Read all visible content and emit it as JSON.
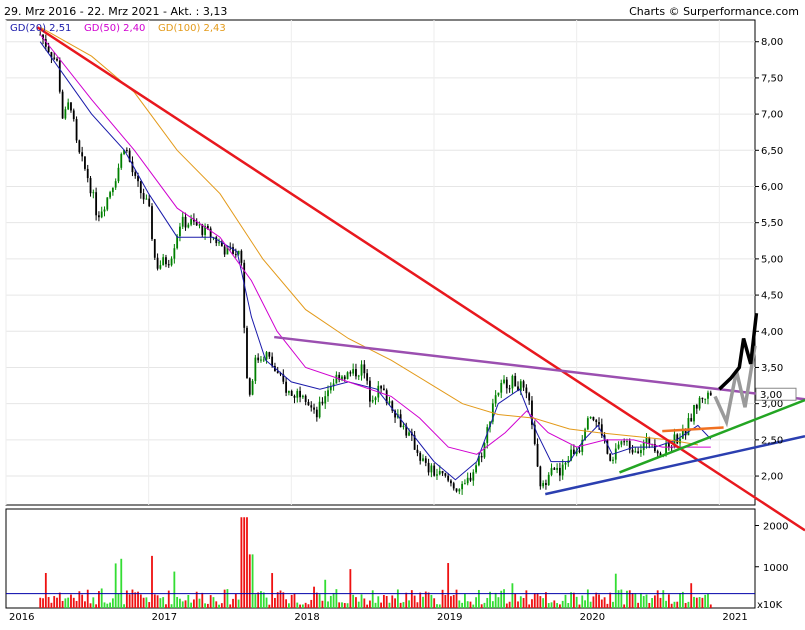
{
  "header": {
    "date_range": "29. Mrz 2016 - 22. Mrz 2021 - Akt. : 3,13",
    "credit": "Charts © Surperformance.com"
  },
  "colors": {
    "up_candle": "#008000",
    "down_candle": "#000000",
    "gd20": "#1a1aaa",
    "gd50": "#d000d0",
    "gd100": "#e39a1a",
    "red_trend": "#e8181e",
    "purple_trend": "#9b4fb0",
    "blue_trend": "#2b3fb0",
    "green_trend": "#23a523",
    "orange_line": "#f07020",
    "vol_up": "#33dd33",
    "vol_down": "#ee1111",
    "vol_avg": "#0000aa"
  },
  "chart_data": {
    "type": "candlestick",
    "legend": [
      {
        "label": "GD(20)",
        "value": "2,51",
        "color": "#1a1aaa"
      },
      {
        "label": "GD(50)",
        "value": "2,40",
        "color": "#d000d0"
      },
      {
        "label": "GD(100)",
        "value": "2,43",
        "color": "#e39a1a"
      }
    ],
    "price_ticks": [
      "8,00",
      "7,50",
      "7,00",
      "6,50",
      "6,00",
      "5,50",
      "5,00",
      "4,50",
      "4,00",
      "3,50",
      "3,00",
      "2,50",
      "2,00"
    ],
    "volume_ticks": [
      "2000",
      "1000"
    ],
    "volume_unit": "x10K",
    "x_ticks": [
      "2016",
      "2017",
      "2018",
      "2019",
      "2020",
      "2021"
    ],
    "ylim": [
      1.6,
      8.3
    ],
    "last_price": 3.13,
    "close_path": [
      [
        2016.24,
        8.1
      ],
      [
        2016.3,
        7.9
      ],
      [
        2016.36,
        7.7
      ],
      [
        2016.4,
        6.9
      ],
      [
        2016.45,
        7.2
      ],
      [
        2016.5,
        6.5
      ],
      [
        2016.58,
        6.1
      ],
      [
        2016.64,
        5.6
      ],
      [
        2016.7,
        5.8
      ],
      [
        2016.78,
        6.2
      ],
      [
        2016.83,
        6.6
      ],
      [
        2016.9,
        6.1
      ],
      [
        2017.0,
        5.7
      ],
      [
        2017.05,
        4.9
      ],
      [
        2017.15,
        5.0
      ],
      [
        2017.22,
        5.5
      ],
      [
        2017.3,
        5.5
      ],
      [
        2017.38,
        5.4
      ],
      [
        2017.45,
        5.3
      ],
      [
        2017.55,
        5.1
      ],
      [
        2017.62,
        5.1
      ],
      [
        2017.66,
        5.0
      ],
      [
        2017.67,
        4.0
      ],
      [
        2017.7,
        3.1
      ],
      [
        2017.75,
        3.6
      ],
      [
        2017.82,
        3.7
      ],
      [
        2017.9,
        3.4
      ],
      [
        2018.0,
        3.1
      ],
      [
        2018.08,
        3.2
      ],
      [
        2018.17,
        2.8
      ],
      [
        2018.25,
        3.2
      ],
      [
        2018.33,
        3.4
      ],
      [
        2018.42,
        3.4
      ],
      [
        2018.5,
        3.5
      ],
      [
        2018.55,
        3.1
      ],
      [
        2018.62,
        3.2
      ],
      [
        2018.7,
        3.0
      ],
      [
        2018.78,
        2.7
      ],
      [
        2018.87,
        2.4
      ],
      [
        2018.95,
        2.1
      ],
      [
        2019.05,
        2.0
      ],
      [
        2019.12,
        1.9
      ],
      [
        2019.2,
        1.8
      ],
      [
        2019.28,
        2.1
      ],
      [
        2019.35,
        2.4
      ],
      [
        2019.42,
        3.1
      ],
      [
        2019.5,
        3.3
      ],
      [
        2019.57,
        3.3
      ],
      [
        2019.62,
        3.2
      ],
      [
        2019.68,
        2.9
      ],
      [
        2019.72,
        2.1
      ],
      [
        2019.76,
        1.8
      ],
      [
        2019.82,
        2.2
      ],
      [
        2019.88,
        2.0
      ],
      [
        2019.95,
        2.3
      ],
      [
        2020.02,
        2.4
      ],
      [
        2020.08,
        2.9
      ],
      [
        2020.12,
        2.8
      ],
      [
        2020.18,
        2.6
      ],
      [
        2020.24,
        2.1
      ],
      [
        2020.3,
        2.5
      ],
      [
        2020.38,
        2.4
      ],
      [
        2020.45,
        2.4
      ],
      [
        2020.52,
        2.5
      ],
      [
        2020.6,
        2.3
      ],
      [
        2020.68,
        2.5
      ],
      [
        2020.76,
        2.6
      ],
      [
        2020.82,
        2.9
      ],
      [
        2020.88,
        3.1
      ],
      [
        2020.94,
        3.13
      ]
    ],
    "moving_averages": {
      "GD20": [
        [
          2016.24,
          8.0
        ],
        [
          2016.6,
          7.0
        ],
        [
          2016.83,
          6.5
        ],
        [
          2017.0,
          5.9
        ],
        [
          2017.2,
          5.3
        ],
        [
          2017.45,
          5.3
        ],
        [
          2017.62,
          5.1
        ],
        [
          2017.72,
          4.2
        ],
        [
          2017.82,
          3.6
        ],
        [
          2018.0,
          3.3
        ],
        [
          2018.2,
          3.2
        ],
        [
          2018.4,
          3.3
        ],
        [
          2018.6,
          3.2
        ],
        [
          2018.8,
          2.7
        ],
        [
          2019.0,
          2.2
        ],
        [
          2019.15,
          1.95
        ],
        [
          2019.3,
          2.2
        ],
        [
          2019.45,
          3.0
        ],
        [
          2019.6,
          3.2
        ],
        [
          2019.72,
          2.6
        ],
        [
          2019.82,
          2.2
        ],
        [
          2019.95,
          2.2
        ],
        [
          2020.05,
          2.5
        ],
        [
          2020.15,
          2.7
        ],
        [
          2020.25,
          2.3
        ],
        [
          2020.4,
          2.4
        ],
        [
          2020.55,
          2.4
        ],
        [
          2020.7,
          2.5
        ],
        [
          2020.85,
          2.7
        ],
        [
          2020.94,
          2.51
        ]
      ],
      "GD50": [
        [
          2016.24,
          8.1
        ],
        [
          2016.6,
          7.2
        ],
        [
          2016.9,
          6.5
        ],
        [
          2017.2,
          5.7
        ],
        [
          2017.5,
          5.3
        ],
        [
          2017.72,
          4.7
        ],
        [
          2017.9,
          4.0
        ],
        [
          2018.1,
          3.5
        ],
        [
          2018.4,
          3.3
        ],
        [
          2018.7,
          3.1
        ],
        [
          2018.9,
          2.8
        ],
        [
          2019.1,
          2.4
        ],
        [
          2019.3,
          2.3
        ],
        [
          2019.5,
          2.6
        ],
        [
          2019.65,
          2.9
        ],
        [
          2019.8,
          2.6
        ],
        [
          2020.0,
          2.4
        ],
        [
          2020.2,
          2.5
        ],
        [
          2020.4,
          2.5
        ],
        [
          2020.6,
          2.4
        ],
        [
          2020.8,
          2.4
        ],
        [
          2020.94,
          2.4
        ]
      ],
      "GD100": [
        [
          2016.24,
          8.2
        ],
        [
          2016.6,
          7.8
        ],
        [
          2016.9,
          7.3
        ],
        [
          2017.2,
          6.5
        ],
        [
          2017.5,
          5.9
        ],
        [
          2017.8,
          5.0
        ],
        [
          2018.1,
          4.3
        ],
        [
          2018.4,
          3.9
        ],
        [
          2018.7,
          3.6
        ],
        [
          2018.95,
          3.3
        ],
        [
          2019.2,
          3.0
        ],
        [
          2019.45,
          2.85
        ],
        [
          2019.7,
          2.8
        ],
        [
          2019.95,
          2.65
        ],
        [
          2020.15,
          2.6
        ],
        [
          2020.4,
          2.55
        ],
        [
          2020.65,
          2.5
        ],
        [
          2020.85,
          2.43
        ]
      ]
    },
    "volume_ylim": [
      0,
      2400
    ],
    "volume_avg": 350
  }
}
